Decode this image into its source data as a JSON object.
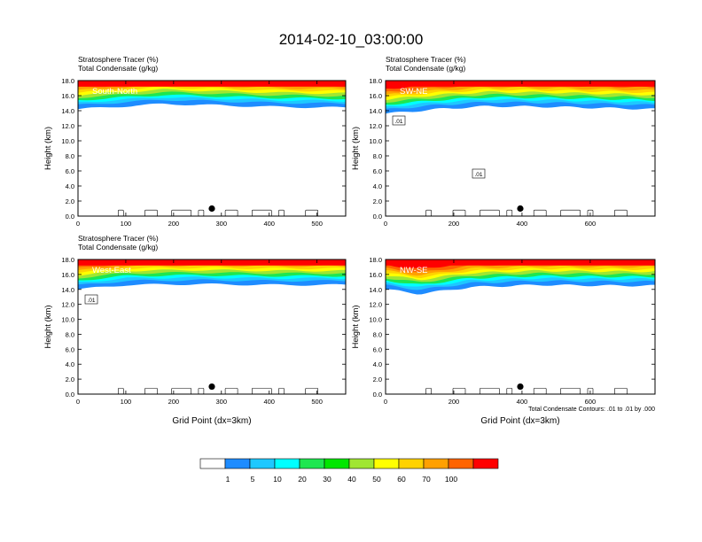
{
  "page_title": "2014-02-10_03:00:00",
  "contour_note": "Total Condensate Contours: .01 to .01 by .000",
  "colorbar": {
    "colors": [
      "#ffffff",
      "#1e8cff",
      "#1ec8ff",
      "#00ffff",
      "#1ee650",
      "#00e600",
      "#a0e632",
      "#ffff00",
      "#ffd200",
      "#ffa000",
      "#ff6400",
      "#ff0000"
    ],
    "labels": [
      "1",
      "5",
      "10",
      "20",
      "30",
      "40",
      "50",
      "60",
      "70",
      "100"
    ]
  },
  "chart_data": [
    {
      "type": "area",
      "panel_label": "South-North",
      "title_line1": "Stratosphere Tracer   (%)",
      "title_line2": "Total Condensate   (g/kg)",
      "ylabel": "Height (km)",
      "xlabel": "",
      "xlim": [
        0,
        560
      ],
      "ylim": [
        0,
        18
      ],
      "xticks": [
        "0",
        "100",
        "200",
        "300",
        "400",
        "500"
      ],
      "xtick_values": [
        0,
        100,
        200,
        300,
        400,
        500
      ],
      "yticks": [
        "0.0",
        "2.0",
        "4.0",
        "6.0",
        "8.0",
        "10.0",
        "12.0",
        "14.0",
        "16.0",
        "18.0"
      ],
      "tracer_base_km": [
        [
          0,
          14.2
        ],
        [
          100,
          14.6
        ],
        [
          180,
          14.9
        ],
        [
          300,
          14.7
        ],
        [
          420,
          14.5
        ],
        [
          560,
          14.4
        ]
      ],
      "marker": [
        280,
        1.0
      ],
      "contour_labels": []
    },
    {
      "type": "area",
      "panel_label": "SW-NE",
      "title_line1": "Stratosphere Tracer   (%)",
      "title_line2": "Total Condensate   (g/kg)",
      "ylabel": "Height (km)",
      "xlabel": "",
      "xlim": [
        0,
        790
      ],
      "ylim": [
        0,
        18
      ],
      "xticks": [
        "0",
        "200",
        "400",
        "600"
      ],
      "xtick_values": [
        0,
        200,
        400,
        600
      ],
      "yticks": [
        "0.0",
        "2.0",
        "4.0",
        "6.0",
        "8.0",
        "10.0",
        "12.0",
        "14.0",
        "16.0",
        "18.0"
      ],
      "tracer_base_km": [
        [
          0,
          13.6
        ],
        [
          150,
          14.2
        ],
        [
          300,
          14.6
        ],
        [
          500,
          14.5
        ],
        [
          700,
          14.3
        ],
        [
          790,
          14.2
        ]
      ],
      "marker": [
        395,
        1.0
      ],
      "contour_labels": [
        ".01",
        ".01"
      ]
    },
    {
      "type": "area",
      "panel_label": "West-East",
      "title_line1": "Stratosphere Tracer   (%)",
      "title_line2": "Total Condensate   (g/kg)",
      "ylabel": "Height (km)",
      "xlabel": "Grid Point (dx=3km)",
      "xlim": [
        0,
        560
      ],
      "ylim": [
        0,
        18
      ],
      "xticks": [
        "0",
        "100",
        "200",
        "300",
        "400",
        "500"
      ],
      "xtick_values": [
        0,
        100,
        200,
        300,
        400,
        500
      ],
      "yticks": [
        "0.0",
        "2.0",
        "4.0",
        "6.0",
        "8.0",
        "10.0",
        "12.0",
        "14.0",
        "16.0",
        "18.0"
      ],
      "tracer_base_km": [
        [
          0,
          14.0
        ],
        [
          100,
          14.6
        ],
        [
          250,
          14.7
        ],
        [
          400,
          14.6
        ],
        [
          560,
          14.6
        ]
      ],
      "marker": [
        280,
        1.0
      ],
      "contour_labels": [
        ".01"
      ]
    },
    {
      "type": "area",
      "panel_label": "NW-SE",
      "title_line1": "",
      "title_line2": "",
      "ylabel": "Height (km)",
      "xlabel": "Grid Point (dx=3km)",
      "xlim": [
        0,
        790
      ],
      "ylim": [
        0,
        18
      ],
      "xticks": [
        "0",
        "200",
        "400",
        "600"
      ],
      "xtick_values": [
        0,
        200,
        400,
        600
      ],
      "yticks": [
        "0.0",
        "2.0",
        "4.0",
        "6.0",
        "8.0",
        "10.0",
        "12.0",
        "14.0",
        "16.0",
        "18.0"
      ],
      "tracer_base_km": [
        [
          0,
          14.0
        ],
        [
          100,
          13.4
        ],
        [
          250,
          14.3
        ],
        [
          450,
          14.6
        ],
        [
          650,
          14.5
        ],
        [
          790,
          14.5
        ]
      ],
      "marker": [
        395,
        1.0
      ],
      "contour_labels": []
    }
  ]
}
